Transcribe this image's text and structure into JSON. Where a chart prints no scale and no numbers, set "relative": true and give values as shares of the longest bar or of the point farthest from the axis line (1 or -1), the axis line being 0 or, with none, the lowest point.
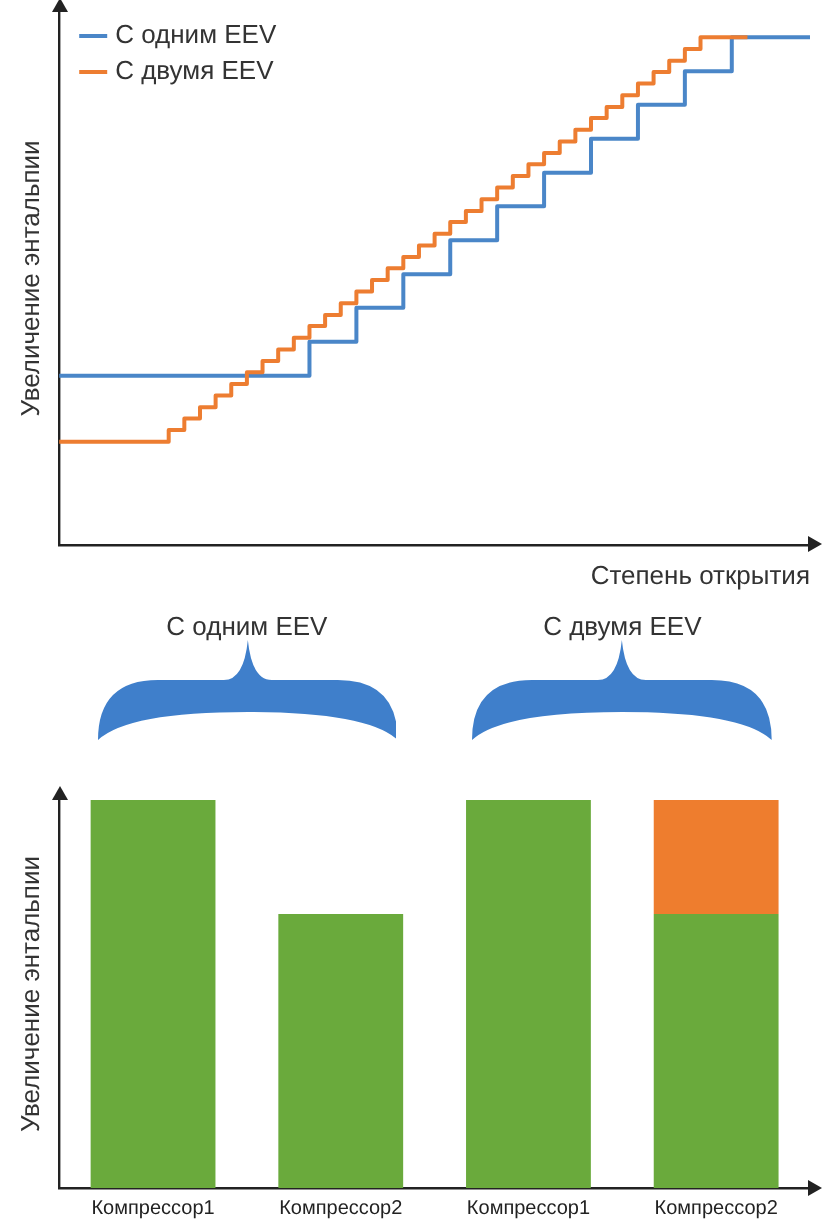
{
  "chart_data": [
    {
      "type": "step",
      "relative": true,
      "legend": "top left",
      "grid": false,
      "tick_labels": false,
      "xlabel": "Степень открытия",
      "ylabel": "Увеличение энтальпии",
      "categories": [
        null,
        null,
        null,
        null,
        null,
        null,
        null,
        null,
        null,
        null,
        null,
        null,
        null,
        null,
        null,
        null,
        null,
        null,
        null,
        null,
        null,
        null,
        null,
        null,
        null,
        null,
        null,
        null,
        null,
        null,
        null,
        null,
        null,
        null,
        null,
        null,
        null,
        null,
        null,
        null,
        null,
        null,
        null,
        null,
        null,
        null,
        null,
        null,
        null
      ],
      "series": [
        {
          "name": "С одним EEV",
          "color": "#4a86c8",
          "values": [
            0.333,
            0.333,
            0.333,
            0.333,
            0.333,
            0.333,
            0.333,
            0.333,
            0.333,
            0.333,
            0.333,
            0.333,
            0.333,
            0.333,
            0.333,
            0.333,
            0.333,
            0.4,
            0.4,
            0.4,
            0.467,
            0.467,
            0.467,
            0.533,
            0.533,
            0.533,
            0.6,
            0.6,
            0.6,
            0.667,
            0.667,
            0.667,
            0.733,
            0.733,
            0.733,
            0.8,
            0.8,
            0.8,
            0.867,
            0.867,
            0.867,
            0.933,
            0.933,
            0.933,
            1,
            1,
            1,
            1,
            1
          ]
        },
        {
          "name": "С двумя EEV",
          "color": "#ed7d31",
          "values": [
            0.203,
            0.203,
            0.203,
            0.203,
            0.203,
            0.203,
            0.203,
            0.203,
            0.226,
            0.249,
            0.271,
            0.294,
            0.317,
            0.34,
            0.362,
            0.385,
            0.408,
            0.431,
            0.453,
            0.476,
            0.499,
            0.522,
            0.545,
            0.567,
            0.59,
            0.613,
            0.636,
            0.658,
            0.681,
            0.704,
            0.727,
            0.75,
            0.772,
            0.795,
            0.818,
            0.841,
            0.863,
            0.886,
            0.909,
            0.932,
            0.954,
            0.977,
            1,
            1,
            1,
            null,
            null,
            null,
            null
          ]
        }
      ]
    },
    {
      "type": "bar",
      "relative": true,
      "stacked": true,
      "grid": false,
      "tick_labels": "x",
      "ylabel": "Увеличение энтальпии",
      "annotations": [
        "С одним EEV",
        "С двумя EEV"
      ],
      "categories": [
        "Компрессор1",
        "Компрессор2",
        "Компрессор1",
        "Компрессор2"
      ],
      "series": [
        {
          "color": "#6aaa3c",
          "values": [
            1,
            0.706,
            1,
            0.706
          ]
        },
        {
          "color": "#ee7d2e",
          "values": [
            null,
            null,
            null,
            0.294
          ]
        }
      ]
    }
  ]
}
